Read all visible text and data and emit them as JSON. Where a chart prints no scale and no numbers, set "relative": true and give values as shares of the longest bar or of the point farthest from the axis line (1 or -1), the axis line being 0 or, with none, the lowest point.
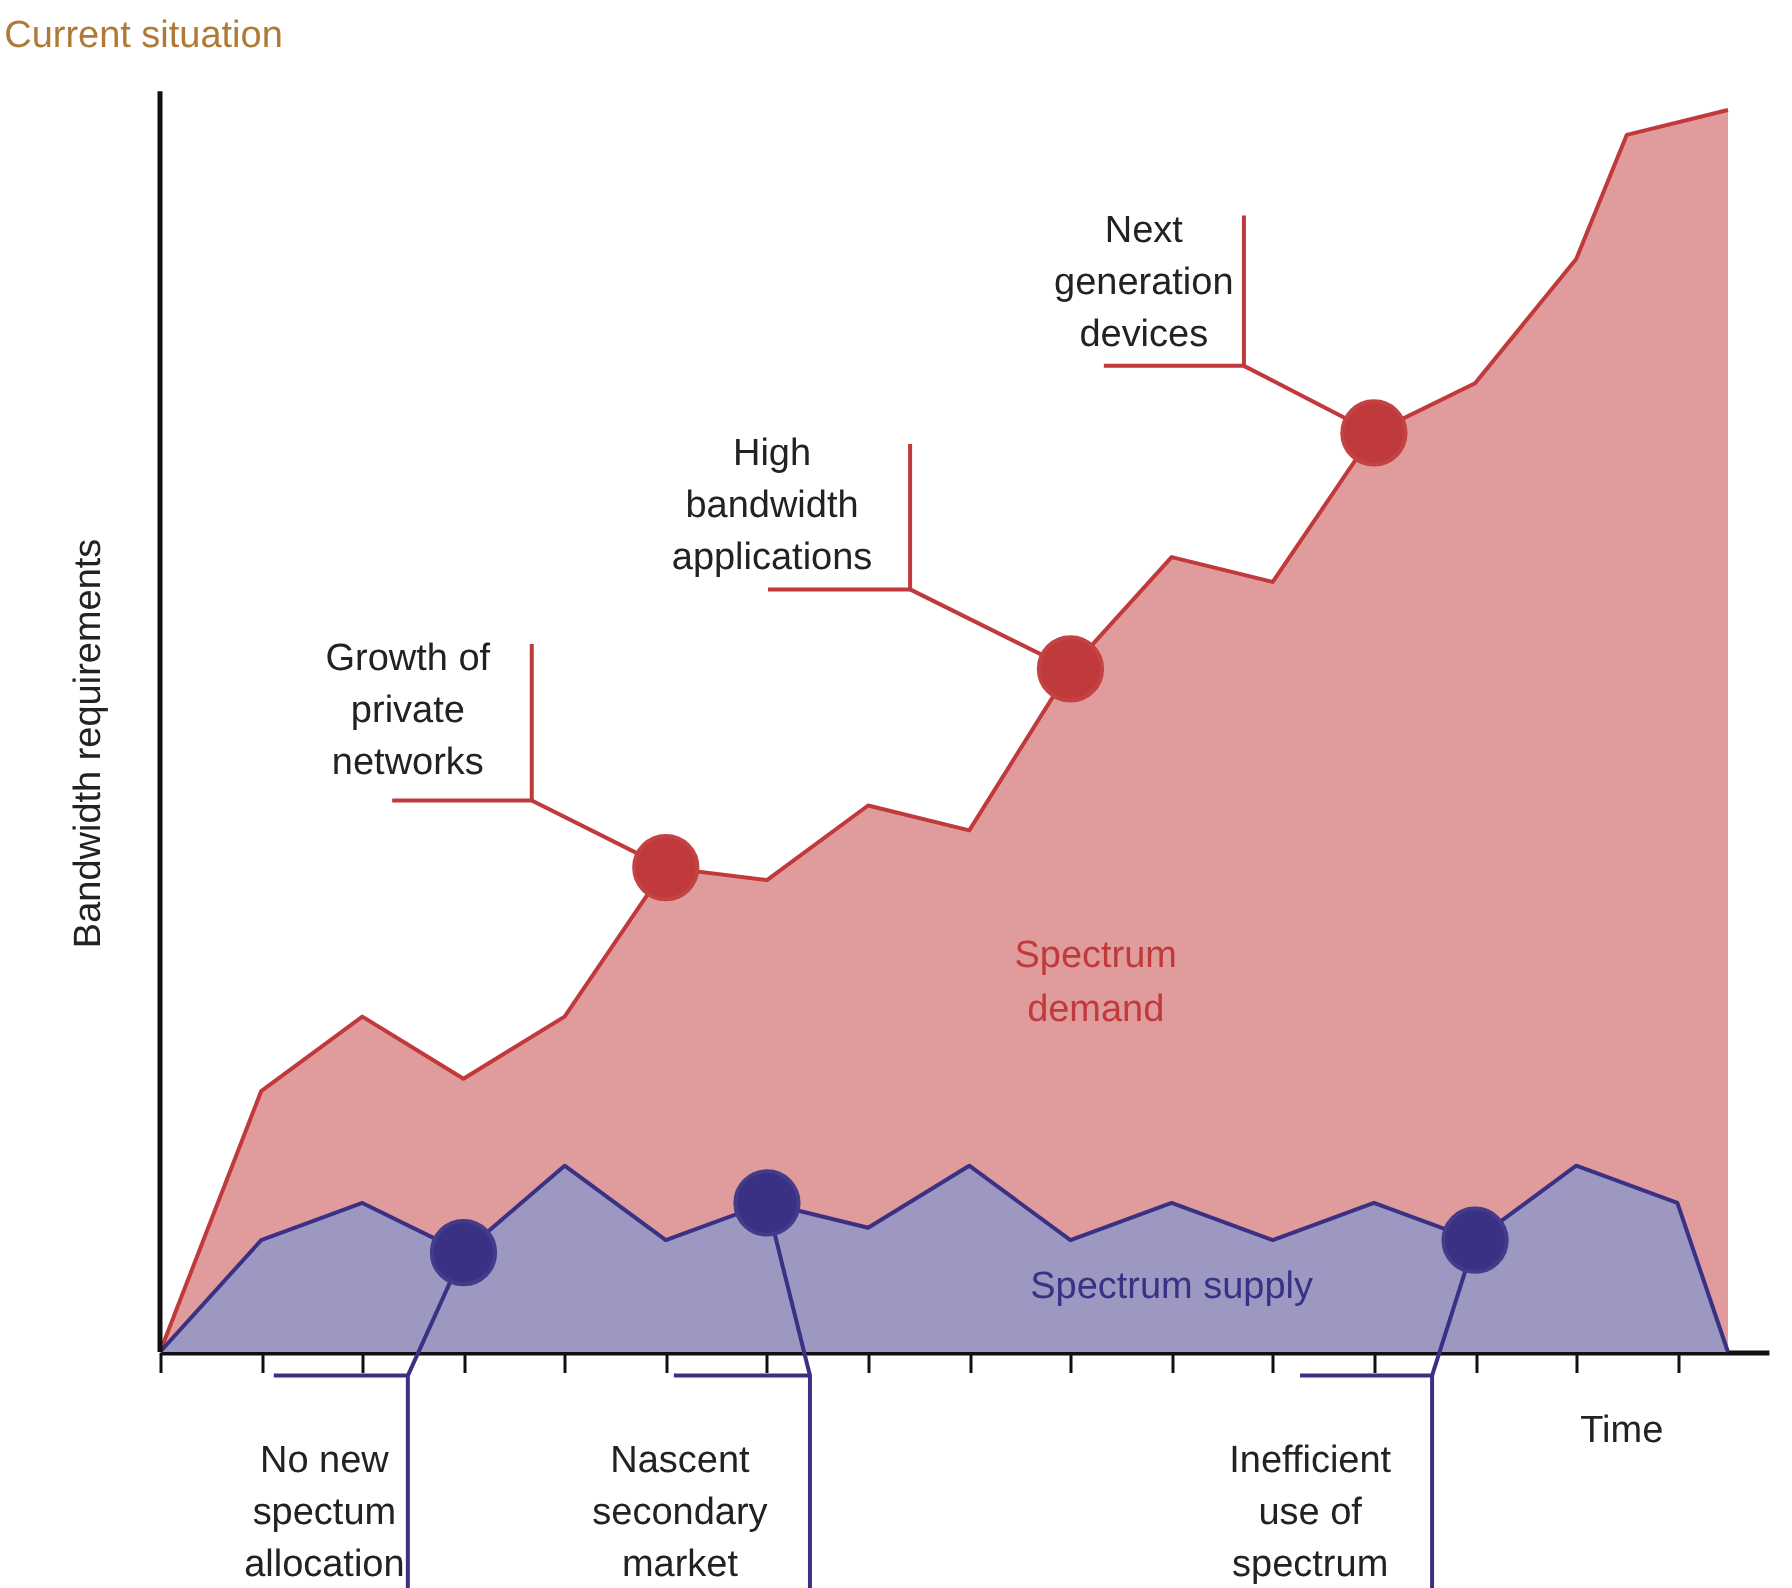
{
  "chart_data": {
    "type": "area",
    "title": "Current situation",
    "xlabel": "Time",
    "ylabel": "Bandwidth requirements",
    "relative": true,
    "categories": [
      null,
      null,
      null,
      null,
      null,
      null,
      null,
      null,
      null,
      null,
      null,
      null,
      null,
      null,
      null,
      null,
      null,
      null,
      null,
      null,
      null,
      null,
      null,
      null,
      null,
      null,
      null,
      null,
      null,
      null,
      null,
      null
    ],
    "series": [
      {
        "name": "Spectrum demand",
        "color": "#c0393b",
        "values": [
          0,
          null,
          0.21,
          null,
          0.27,
          null,
          0.22,
          null,
          0.27,
          null,
          0.39,
          null,
          0.38,
          null,
          0.44,
          null,
          0.42,
          null,
          0.55,
          null,
          0.64,
          null,
          0.62,
          null,
          0.74,
          null,
          0.78,
          null,
          0.88,
          0.98,
          null,
          1
        ]
      },
      {
        "name": "Spectrum supply",
        "color": "#3a3185",
        "values": [
          0,
          null,
          0.09,
          null,
          0.12,
          null,
          0.08,
          null,
          0.15,
          null,
          0.09,
          null,
          0.12,
          null,
          0.1,
          null,
          0.15,
          null,
          0.09,
          null,
          0.12,
          null,
          0.09,
          null,
          0.12,
          null,
          0.09,
          null,
          0.15,
          null,
          0.12,
          0
        ]
      }
    ],
    "annotations": [
      "Growth of\nprivate\nnetworks",
      "High\nbandwidth\napplications",
      "Next\ngeneration\ndevices",
      "No new\nspectum\nallocation",
      "Nascent\nsecondary\nmarket",
      "Inefficient\nuse of\nspectrum"
    ]
  }
}
